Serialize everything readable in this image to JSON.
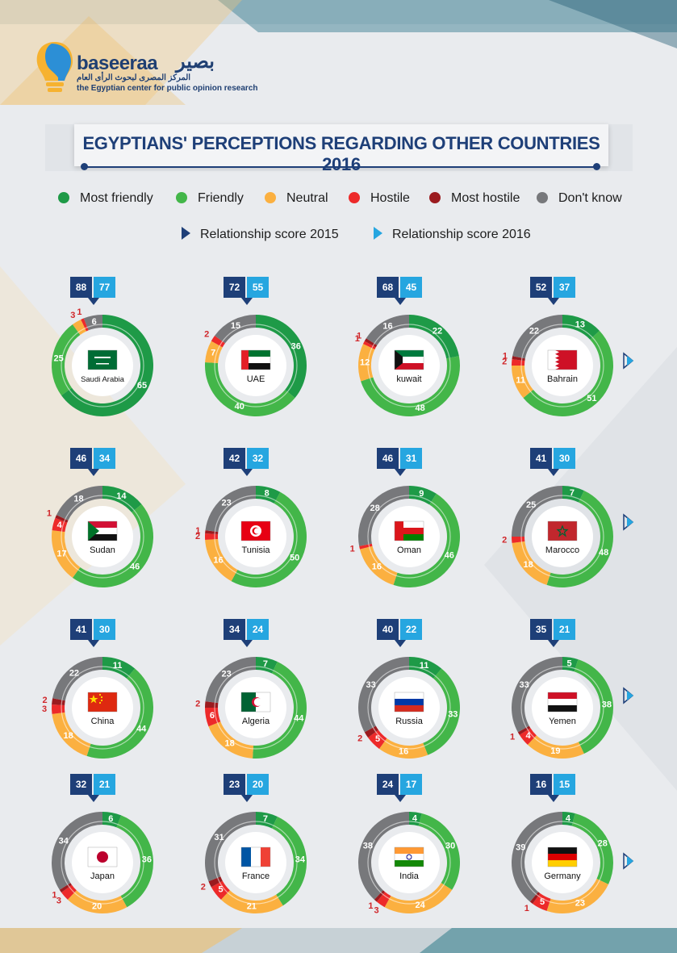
{
  "brand": {
    "name_en": "baseeraa",
    "name_ar": "بصير",
    "subtitle_ar": "المركز المصرى لبحوث الرأى العام",
    "subtitle_en": "the Egyptian center for public opinion research"
  },
  "title": "EGYPTIANS' PERCEPTIONS REGARDING OTHER COUNTRIES 2016",
  "legend": {
    "categories": [
      {
        "label": "Most friendly",
        "color": "#1e9a47"
      },
      {
        "label": "Friendly",
        "color": "#43b649"
      },
      {
        "label": "Neutral",
        "color": "#fbb040"
      },
      {
        "label": "Hostile",
        "color": "#ed2a2a"
      },
      {
        "label": "Most hostile",
        "color": "#9b1b1f"
      },
      {
        "label": "Don't know",
        "color": "#77787b"
      }
    ],
    "score_2015": "Relationship score 2015",
    "score_2016": "Relationship score 2016",
    "score_2015_color": "#1e3f78",
    "score_2016_color": "#26a6e0"
  },
  "chart_data": {
    "type": "pie",
    "variant": "donut",
    "series_order": [
      "Most friendly",
      "Friendly",
      "Neutral",
      "Hostile",
      "Most hostile",
      "Don't know"
    ],
    "charts": [
      {
        "country": "Saudi Arabia",
        "flag": "saudi",
        "score_2015": 88,
        "score_2016": 77,
        "values": [
          65,
          25,
          3,
          1,
          0,
          6
        ]
      },
      {
        "country": "UAE",
        "flag": "uae",
        "score_2015": 72,
        "score_2016": 55,
        "values": [
          36,
          40,
          7,
          2,
          0,
          15
        ]
      },
      {
        "country": "kuwait",
        "flag": "kuwait",
        "score_2015": 68,
        "score_2016": 45,
        "values": [
          22,
          48,
          12,
          1,
          1,
          16
        ]
      },
      {
        "country": "Bahrain",
        "flag": "bahrain",
        "score_2015": 52,
        "score_2016": 37,
        "values": [
          13,
          51,
          11,
          2,
          1,
          22
        ]
      },
      {
        "country": "Sudan",
        "flag": "sudan",
        "score_2015": 46,
        "score_2016": 34,
        "values": [
          14,
          46,
          17,
          4,
          1,
          18
        ]
      },
      {
        "country": "Tunisia",
        "flag": "tunisia",
        "score_2015": 42,
        "score_2016": 32,
        "values": [
          8,
          50,
          16,
          2,
          1,
          23
        ]
      },
      {
        "country": "Oman",
        "flag": "oman",
        "score_2015": 46,
        "score_2016": 31,
        "values": [
          9,
          46,
          16,
          1,
          0,
          28
        ]
      },
      {
        "country": "Marocco",
        "flag": "morocco",
        "score_2015": 41,
        "score_2016": 30,
        "values": [
          7,
          48,
          18,
          2,
          0,
          25
        ]
      },
      {
        "country": "China",
        "flag": "china",
        "score_2015": 41,
        "score_2016": 30,
        "values": [
          11,
          44,
          18,
          3,
          2,
          22
        ]
      },
      {
        "country": "Algeria",
        "flag": "algeria",
        "score_2015": 34,
        "score_2016": 24,
        "values": [
          7,
          44,
          18,
          6,
          2,
          23
        ]
      },
      {
        "country": "Russia",
        "flag": "russia",
        "score_2015": 40,
        "score_2016": 22,
        "values": [
          11,
          33,
          16,
          5,
          2,
          33
        ]
      },
      {
        "country": "Yemen",
        "flag": "yemen",
        "score_2015": 35,
        "score_2016": 21,
        "values": [
          5,
          38,
          19,
          4,
          1,
          33
        ]
      },
      {
        "country": "Japan",
        "flag": "japan",
        "score_2015": 32,
        "score_2016": 21,
        "values": [
          6,
          36,
          20,
          3,
          1,
          34
        ]
      },
      {
        "country": "France",
        "flag": "france",
        "score_2015": 23,
        "score_2016": 20,
        "values": [
          7,
          34,
          21,
          5,
          2,
          31
        ]
      },
      {
        "country": "India",
        "flag": "india",
        "score_2015": 24,
        "score_2016": 17,
        "values": [
          4,
          30,
          24,
          3,
          1,
          38
        ]
      },
      {
        "country": "Germany",
        "flag": "germany",
        "score_2015": 16,
        "score_2016": 15,
        "values": [
          4,
          28,
          23,
          5,
          1,
          39
        ]
      }
    ]
  }
}
